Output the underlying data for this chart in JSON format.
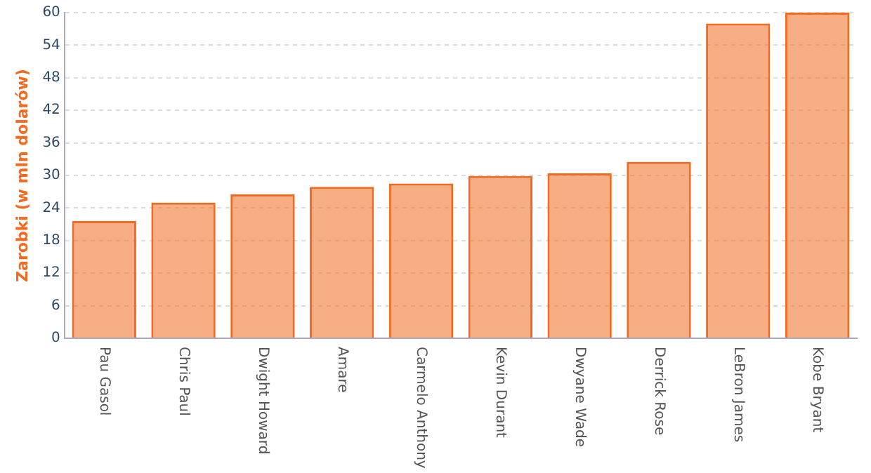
{
  "chart_data": {
    "type": "bar",
    "ylabel": "Zarobki (w mln dolarów)",
    "categories": [
      "Pau Gasol",
      "Chris Paul",
      "Dwight Howard",
      "Amare",
      "Carmelo Anthony",
      "Kevin Durant",
      "Dwyane Wade",
      "Derrick Rose",
      "LeBron James",
      "Kobe Bryant"
    ],
    "values": [
      21.6,
      25,
      26.5,
      27.9,
      28.5,
      29.9,
      30.4,
      32.5,
      58,
      60
    ],
    "color": "#f26b21",
    "ylim": [
      0,
      60
    ],
    "yticks": [
      0,
      6,
      12,
      18,
      24,
      30,
      36,
      42,
      48,
      54,
      60
    ],
    "grid": "y",
    "legend": false
  }
}
